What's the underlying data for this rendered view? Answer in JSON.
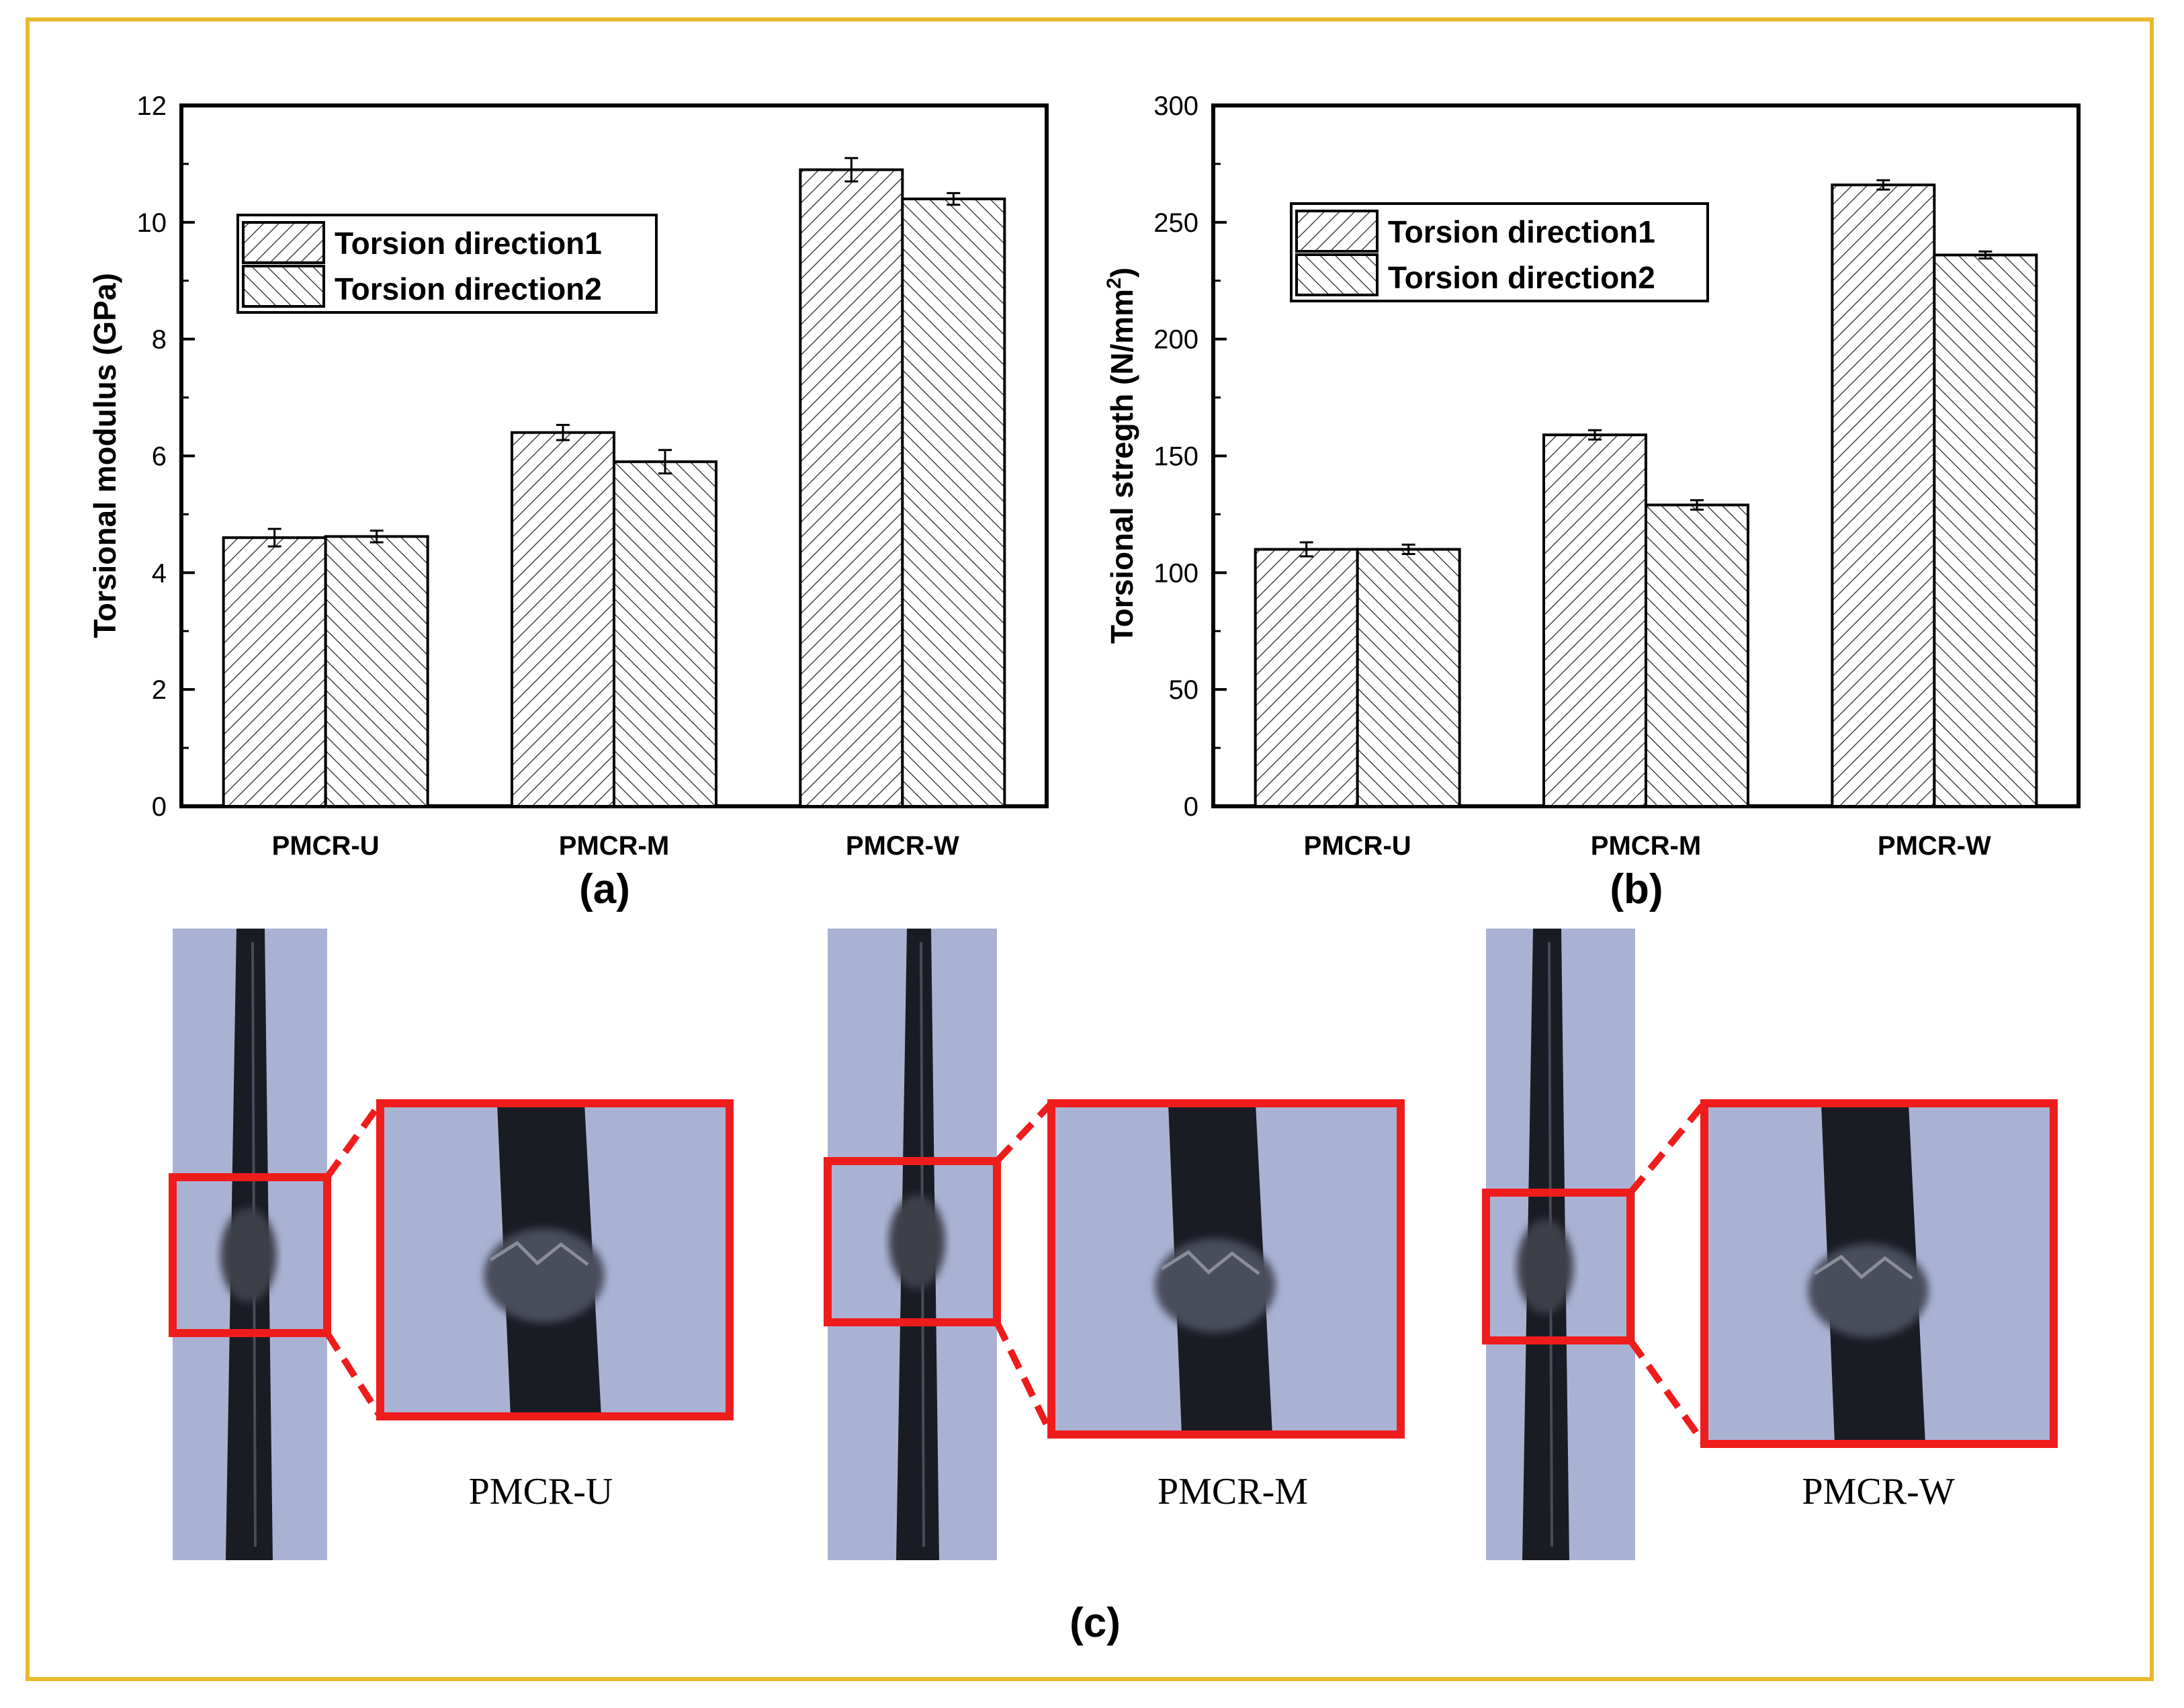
{
  "chart_data": [
    {
      "type": "bar",
      "panel_label": "(a)",
      "categories": [
        "PMCR-U",
        "PMCR-M",
        "PMCR-W"
      ],
      "series": [
        {
          "name": "Torsion direction1",
          "values": [
            4.6,
            6.4,
            10.9
          ],
          "errors": [
            0.15,
            0.13,
            0.2
          ]
        },
        {
          "name": "Torsion direction2",
          "values": [
            4.62,
            5.9,
            10.4
          ],
          "errors": [
            0.1,
            0.2,
            0.1
          ]
        }
      ],
      "ylabel": "Torsional modulus (GPa)",
      "ylim": [
        0,
        12
      ],
      "yticks": [
        "0",
        "2",
        "4",
        "6",
        "8",
        "10",
        "12"
      ],
      "legend_position": "upper-left",
      "grid": false
    },
    {
      "type": "bar",
      "panel_label": "(b)",
      "categories": [
        "PMCR-U",
        "PMCR-M",
        "PMCR-W"
      ],
      "series": [
        {
          "name": "Torsion direction1",
          "values": [
            110,
            159,
            266
          ],
          "errors": [
            3,
            2,
            2
          ]
        },
        {
          "name": "Torsion direction2",
          "values": [
            110,
            129,
            236
          ],
          "errors": [
            2,
            2,
            1.5
          ]
        }
      ],
      "ylabel": "Torsional stregth (N/mm",
      "ylabel_sup": "2",
      "ylabel_end": ")",
      "ylim": [
        0,
        300
      ],
      "yticks": [
        "0",
        "50",
        "100",
        "150",
        "200",
        "250",
        "300"
      ],
      "legend_position": "upper-left",
      "grid": false
    }
  ],
  "photos": {
    "panel_label": "(c)",
    "items": [
      {
        "label": "PMCR-U"
      },
      {
        "label": "PMCR-M"
      },
      {
        "label": "PMCR-W"
      }
    ],
    "colors": {
      "background": "#aab2d4",
      "rod": "#1a1c24",
      "highlight": "#ef1c1c"
    }
  }
}
